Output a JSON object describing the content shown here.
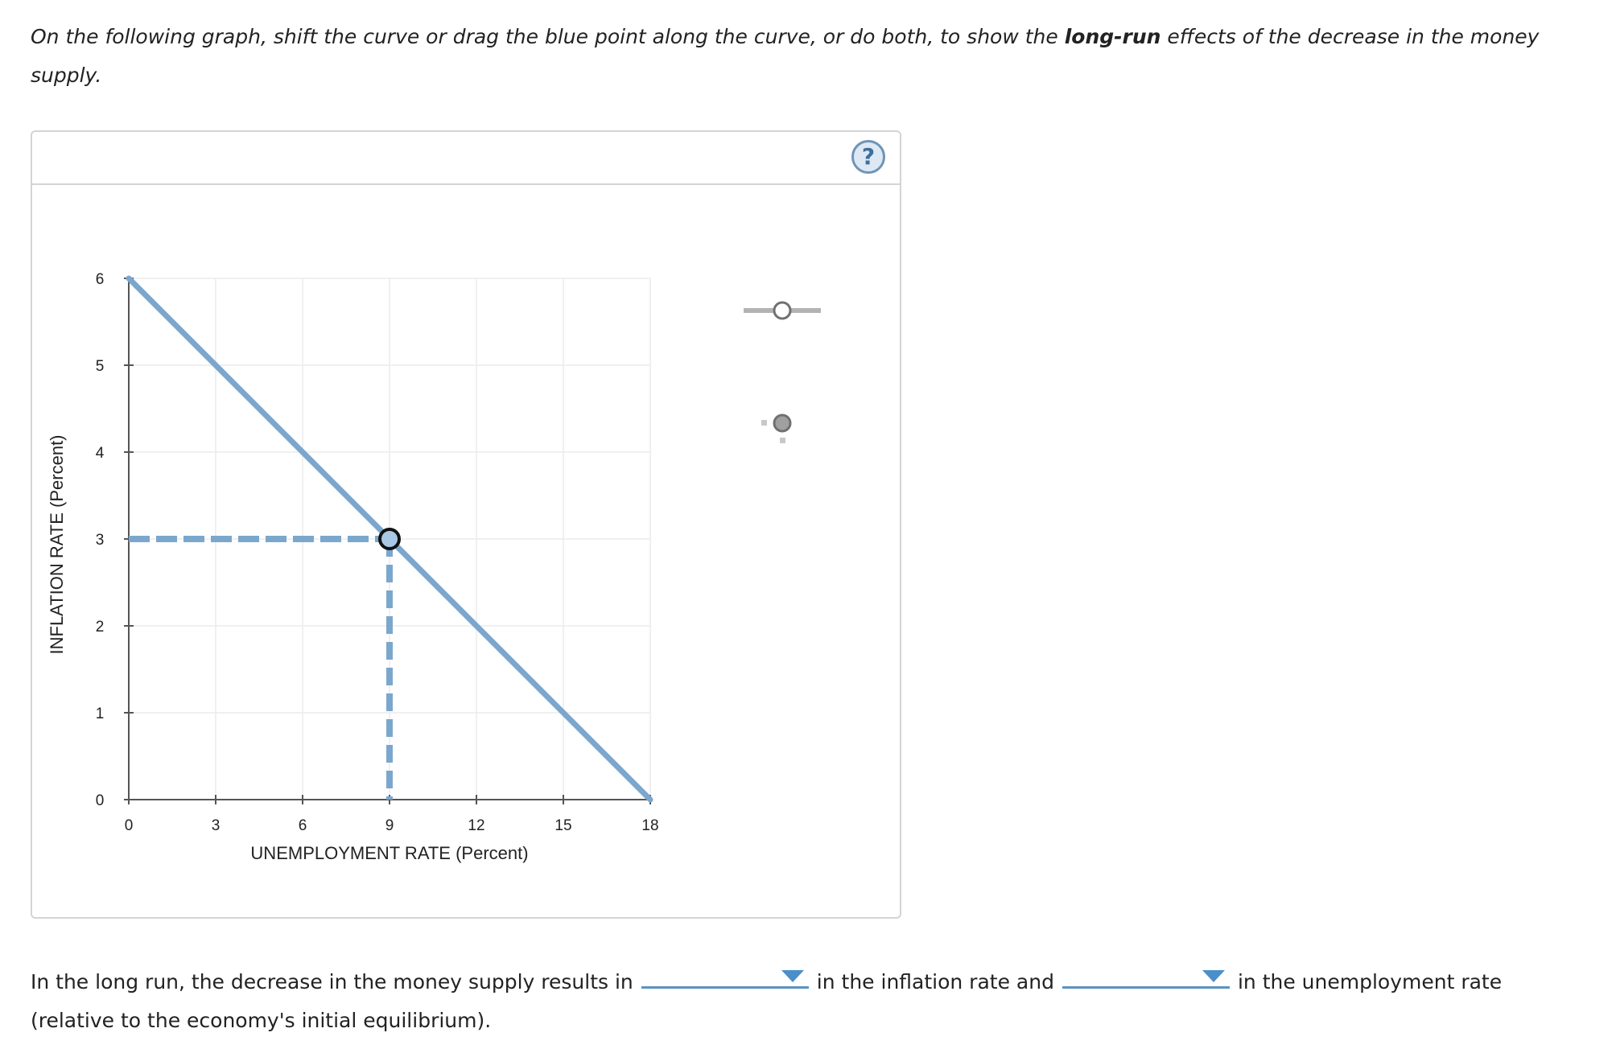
{
  "instructions": {
    "text_before": "On the following graph, shift the curve or drag the blue point along the curve, or do both, to show the ",
    "bold": "long-run",
    "text_after": " effects of the decrease in the money supply."
  },
  "panel": {
    "help_icon": "question-mark-icon",
    "help_label": "?"
  },
  "chart_data": {
    "type": "line",
    "xlabel": "UNEMPLOYMENT RATE (Percent)",
    "ylabel": "INFLATION RATE (Percent)",
    "xlim": [
      0,
      18
    ],
    "ylim": [
      0,
      6
    ],
    "x_ticks": [
      0,
      3,
      6,
      9,
      12,
      15,
      18
    ],
    "y_ticks": [
      0,
      1,
      2,
      3,
      4,
      5,
      6
    ],
    "grid": true,
    "series": [
      {
        "x": [
          0,
          18
        ],
        "y": [
          6,
          0
        ],
        "color": "#7ba7cc"
      }
    ],
    "point": {
      "x": 9,
      "y": 3,
      "fill": "#a9c8e6",
      "stroke": "#111111"
    },
    "guides": {
      "style": "dashed",
      "color": "#7ba7cc"
    }
  },
  "palette": {
    "tools": [
      {
        "name": "curve-tool",
        "icon": "line-with-point-icon",
        "color": "#b3b3b3"
      },
      {
        "name": "point-tool",
        "icon": "point-with-guides-icon",
        "color": "#9a9a9a"
      }
    ]
  },
  "question": {
    "part1": "In the long run, the decrease in the money supply results in",
    "part2": "in the inflation rate and",
    "part3": "in the unemployment rate",
    "part4": "(relative to the economy's initial equilibrium).",
    "dropdown1_value": "",
    "dropdown2_value": ""
  }
}
